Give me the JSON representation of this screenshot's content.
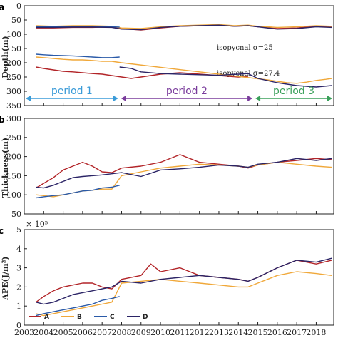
{
  "colors": {
    "A": "#b22428",
    "B": "#f0a83a",
    "C": "#2a5aa8",
    "D": "#2b2466",
    "period1": "#3a9bd8",
    "period2": "#7a3c9c",
    "period3": "#3aa05a"
  },
  "panel_letters": [
    "a",
    "b",
    "c"
  ],
  "xaxis": {
    "ticks": [
      "2003",
      "2004",
      "2005",
      "2006",
      "2007",
      "2008",
      "2009",
      "2010",
      "2011",
      "2012",
      "2013",
      "2014",
      "2015",
      "2016",
      "2017",
      "2018"
    ],
    "xlim": [
      2003,
      2018.9
    ]
  },
  "chart_data": [
    {
      "type": "line",
      "ylabel": "Depth(m)",
      "ylim": [
        0,
        350
      ],
      "yinvert": true,
      "yticks": [
        "0",
        "50",
        "100",
        "150",
        "200",
        "250",
        "300",
        "350"
      ],
      "annotations": [
        {
          "text": "isopycnal σ=25",
          "x": 2014.85,
          "y": 105
        },
        {
          "text": "isopycnal σ=27.4",
          "x": 2014.85,
          "y": 192
        }
      ],
      "periods": [
        {
          "label": "period 1",
          "start": 2003.0,
          "end": 2007.9,
          "color_key": "period1"
        },
        {
          "label": "period 2",
          "start": 2007.9,
          "end": 2014.8,
          "color_key": "period2"
        },
        {
          "label": "period 3",
          "start": 2014.8,
          "end": 2018.9,
          "color_key": "period3"
        }
      ],
      "series": [
        {
          "name": "A",
          "layer": "σ=25",
          "x": [
            2003.6,
            2004.5,
            2005.5,
            2006.5,
            2007.5,
            2008.0,
            2009.0,
            2010.0,
            2011.0,
            2012.0,
            2013.0,
            2013.8,
            2014.5,
            2015.0,
            2016.0,
            2017.0,
            2018.0,
            2018.8
          ],
          "y": [
            78,
            78,
            76,
            76,
            74,
            80,
            85,
            78,
            72,
            70,
            68,
            72,
            70,
            74,
            80,
            78,
            72,
            75
          ]
        },
        {
          "name": "B",
          "layer": "σ=25",
          "x": [
            2003.6,
            2004.5,
            2005.5,
            2006.5,
            2007.5,
            2008.0,
            2009.0,
            2010.0,
            2011.0,
            2012.0,
            2013.0,
            2013.8,
            2014.5,
            2015.0,
            2016.0,
            2017.0,
            2018.0,
            2018.8
          ],
          "y": [
            70,
            72,
            70,
            70,
            72,
            78,
            80,
            74,
            70,
            68,
            66,
            70,
            68,
            72,
            76,
            74,
            70,
            72
          ]
        },
        {
          "name": "C",
          "layer": "σ=25",
          "x": [
            2003.6,
            2004.5,
            2005.5,
            2006.5,
            2007.5,
            2007.9
          ],
          "y": [
            74,
            74,
            73,
            73,
            74,
            75
          ]
        },
        {
          "name": "D",
          "layer": "σ=25",
          "x": [
            2003.6,
            2004.5,
            2005.5,
            2006.5,
            2007.5,
            2008.0,
            2009.0,
            2010.0,
            2011.0,
            2012.0,
            2013.0,
            2013.8,
            2014.5,
            2015.0,
            2016.0,
            2017.0,
            2018.0,
            2018.8
          ],
          "y": [
            76,
            76,
            75,
            75,
            76,
            82,
            84,
            76,
            72,
            70,
            68,
            72,
            70,
            74,
            82,
            80,
            74,
            76
          ]
        },
        {
          "name": "A",
          "layer": "σ=27.4",
          "x": [
            2003.6,
            2004.0,
            2004.5,
            2005.0,
            2005.5,
            2006.0,
            2006.5,
            2007.0,
            2007.5,
            2008.0,
            2008.5,
            2009.0,
            2010.0,
            2011.0,
            2012.0,
            2013.0,
            2014.0,
            2014.5
          ],
          "y": [
            215,
            220,
            225,
            230,
            232,
            235,
            238,
            240,
            245,
            250,
            255,
            250,
            240,
            235,
            240,
            245,
            250,
            248
          ]
        },
        {
          "name": "B",
          "layer": "σ=27.4",
          "x": [
            2003.6,
            2004.0,
            2004.5,
            2005.0,
            2005.5,
            2006.0,
            2006.5,
            2007.0,
            2007.5,
            2008.0,
            2015.5,
            2016.0,
            2016.5,
            2017.0,
            2017.5,
            2018.0,
            2018.5,
            2018.8
          ],
          "y": [
            180,
            182,
            185,
            188,
            190,
            190,
            192,
            195,
            195,
            200,
            260,
            265,
            270,
            272,
            268,
            262,
            258,
            255
          ]
        },
        {
          "name": "C",
          "layer": "σ=27.4",
          "x": [
            2003.6,
            2004.0,
            2004.5,
            2005.0,
            2005.5,
            2006.0,
            2006.5,
            2007.0,
            2007.5,
            2007.9
          ],
          "y": [
            170,
            172,
            174,
            175,
            176,
            178,
            180,
            182,
            182,
            180
          ]
        },
        {
          "name": "D",
          "layer": "σ=27.4",
          "x": [
            2007.9,
            2008.5,
            2009.0,
            2010.0,
            2011.0,
            2012.0,
            2013.0,
            2014.0,
            2014.5,
            2015.0,
            2016.0,
            2017.0,
            2018.0,
            2018.8
          ],
          "y": [
            215,
            220,
            232,
            238,
            240,
            242,
            244,
            240,
            238,
            255,
            270,
            280,
            285,
            280
          ]
        }
      ]
    },
    {
      "type": "line",
      "ylabel": "Thickness(m)",
      "ylim": [
        50,
        300
      ],
      "yticks": [
        "50",
        "100",
        "150",
        "200",
        "250",
        "300"
      ],
      "series": [
        {
          "name": "A",
          "x": [
            2003.6,
            2004.0,
            2004.5,
            2005.0,
            2005.5,
            2006.0,
            2006.5,
            2007.0,
            2007.5,
            2008.0,
            2009.0,
            2010.0,
            2011.0,
            2012.0,
            2013.0,
            2014.0,
            2014.5,
            2015.0,
            2016.0,
            2017.0,
            2018.0,
            2018.8
          ],
          "y": [
            118,
            130,
            145,
            165,
            175,
            185,
            175,
            160,
            158,
            170,
            175,
            185,
            205,
            185,
            180,
            175,
            170,
            178,
            185,
            190,
            195,
            192
          ]
        },
        {
          "name": "B",
          "x": [
            2003.6,
            2004.0,
            2004.5,
            2005.0,
            2005.5,
            2006.0,
            2006.5,
            2007.0,
            2007.5,
            2008.0,
            2009.0,
            2010.0,
            2011.0,
            2012.0,
            2013.0,
            2014.0,
            2014.5,
            2015.0,
            2016.0,
            2017.0,
            2018.0,
            2018.8
          ],
          "y": [
            100,
            98,
            95,
            100,
            105,
            110,
            112,
            115,
            115,
            150,
            160,
            170,
            175,
            180,
            178,
            175,
            172,
            178,
            185,
            180,
            175,
            172
          ]
        },
        {
          "name": "C",
          "x": [
            2003.6,
            2004.0,
            2004.5,
            2005.0,
            2005.5,
            2006.0,
            2006.5,
            2007.0,
            2007.5,
            2007.9
          ],
          "y": [
            92,
            95,
            98,
            100,
            105,
            110,
            112,
            118,
            120,
            125
          ]
        },
        {
          "name": "D",
          "x": [
            2003.6,
            2004.0,
            2004.5,
            2005.0,
            2005.5,
            2006.0,
            2006.5,
            2007.0,
            2007.5,
            2008.0,
            2009.0,
            2010.0,
            2011.0,
            2012.0,
            2013.0,
            2014.0,
            2014.5,
            2015.0,
            2016.0,
            2017.0,
            2018.0,
            2018.8
          ],
          "y": [
            120,
            118,
            125,
            135,
            145,
            148,
            150,
            152,
            155,
            158,
            148,
            165,
            168,
            172,
            178,
            175,
            172,
            180,
            185,
            195,
            190,
            195
          ]
        }
      ]
    },
    {
      "type": "line",
      "ylabel": "APE(J/m²)",
      "yexponent": "× 10⁵",
      "ylim": [
        0,
        5
      ],
      "yticks": [
        "0",
        "1",
        "2",
        "3",
        "4",
        "5"
      ],
      "legend": [
        "A",
        "B",
        "C",
        "D"
      ],
      "series": [
        {
          "name": "A",
          "x": [
            2003.6,
            2004.0,
            2004.5,
            2005.0,
            2005.5,
            2006.0,
            2006.5,
            2007.0,
            2007.5,
            2008.0,
            2009.0,
            2009.5,
            2010.0,
            2011.0,
            2012.0,
            2013.0,
            2014.0,
            2014.5,
            2015.0,
            2016.0,
            2017.0,
            2018.0,
            2018.8
          ],
          "y": [
            1.2,
            1.5,
            1.8,
            2.0,
            2.1,
            2.2,
            2.2,
            2.0,
            1.9,
            2.4,
            2.6,
            3.2,
            2.8,
            3.0,
            2.6,
            2.5,
            2.4,
            2.3,
            2.5,
            3.0,
            3.4,
            3.2,
            3.4
          ]
        },
        {
          "name": "B",
          "x": [
            2003.6,
            2004.0,
            2004.5,
            2005.0,
            2005.5,
            2006.0,
            2006.5,
            2007.0,
            2007.5,
            2008.0,
            2009.0,
            2010.0,
            2011.0,
            2012.0,
            2013.0,
            2014.0,
            2014.5,
            2015.0,
            2016.0,
            2017.0,
            2018.0,
            2018.8
          ],
          "y": [
            0.6,
            0.5,
            0.6,
            0.7,
            0.8,
            0.9,
            1.0,
            1.1,
            1.2,
            2.2,
            2.3,
            2.4,
            2.3,
            2.2,
            2.1,
            2.0,
            2.0,
            2.2,
            2.6,
            2.8,
            2.7,
            2.6
          ]
        },
        {
          "name": "C",
          "x": [
            2003.6,
            2004.0,
            2004.5,
            2005.0,
            2005.5,
            2006.0,
            2006.5,
            2007.0,
            2007.5,
            2007.9
          ],
          "y": [
            0.5,
            0.6,
            0.7,
            0.8,
            0.9,
            1.0,
            1.1,
            1.3,
            1.4,
            1.5
          ]
        },
        {
          "name": "D",
          "x": [
            2003.6,
            2004.0,
            2004.5,
            2005.0,
            2005.5,
            2006.0,
            2006.5,
            2007.0,
            2007.5,
            2008.0,
            2009.0,
            2010.0,
            2011.0,
            2012.0,
            2013.0,
            2014.0,
            2014.5,
            2015.0,
            2016.0,
            2017.0,
            2018.0,
            2018.8
          ],
          "y": [
            1.2,
            1.1,
            1.2,
            1.4,
            1.6,
            1.7,
            1.8,
            1.9,
            2.0,
            2.3,
            2.2,
            2.4,
            2.5,
            2.6,
            2.5,
            2.4,
            2.3,
            2.5,
            3.0,
            3.4,
            3.3,
            3.5
          ]
        }
      ]
    }
  ]
}
